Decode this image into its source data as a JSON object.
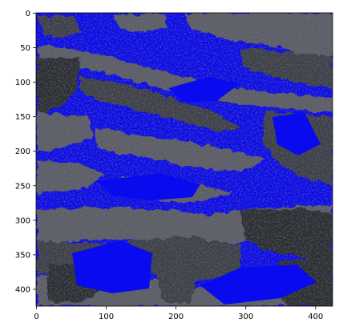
{
  "figure": {
    "image_extent": {
      "x": [
        0,
        425
      ],
      "y": [
        0,
        425
      ]
    },
    "x_ticks": [
      0,
      100,
      200,
      300,
      400
    ],
    "x_tick_labels": [
      "0",
      "100",
      "200",
      "300",
      "400"
    ],
    "y_ticks": [
      0,
      50,
      100,
      150,
      200,
      250,
      300,
      350,
      400
    ],
    "y_tick_labels": [
      "0",
      "50",
      "100",
      "150",
      "200",
      "250",
      "300",
      "350",
      "400"
    ],
    "y_inverted": true,
    "image_description": "blue-masked aerial/ground scene with gray terrain patches",
    "colors": {
      "mask_blue": "#0a0aef",
      "terrain_dark": "#3e3f49",
      "terrain_mid": "#5d5e68",
      "terrain_light": "#8a8b94",
      "vegetation": "#2a2d30"
    }
  }
}
